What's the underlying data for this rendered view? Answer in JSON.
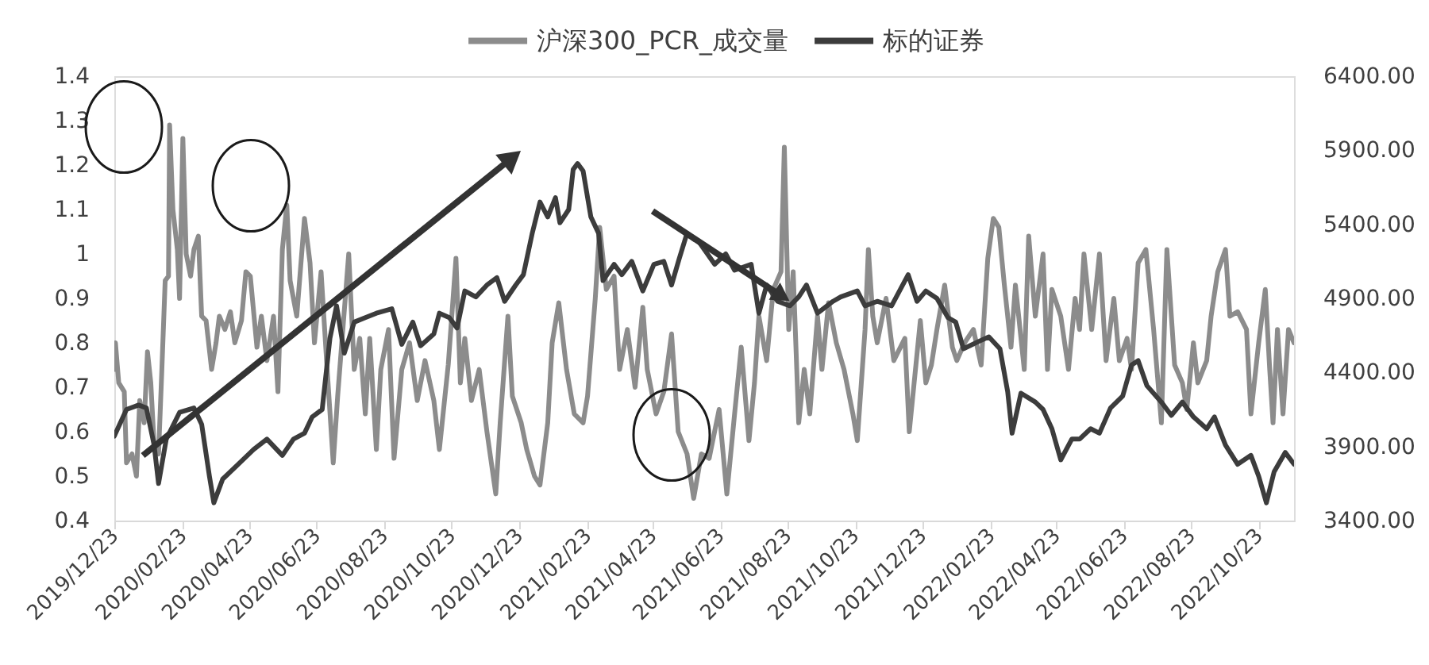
{
  "chart_data": {
    "type": "line",
    "legend": "top",
    "grid": false,
    "xlim": [
      "2019-12-23",
      "2022-11-24"
    ],
    "xticks": [
      {
        "value": "2019-12-23",
        "label": "2019/12/23"
      },
      {
        "value": "2020-02-23",
        "label": "2020/02/23"
      },
      {
        "value": "2020-04-23",
        "label": "2020/04/23"
      },
      {
        "value": "2020-06-23",
        "label": "2020/06/23"
      },
      {
        "value": "2020-08-23",
        "label": "2020/08/23"
      },
      {
        "value": "2020-10-23",
        "label": "2020/10/23"
      },
      {
        "value": "2020-12-23",
        "label": "2020/12/23"
      },
      {
        "value": "2021-02-23",
        "label": "2021/02/23"
      },
      {
        "value": "2021-04-23",
        "label": "2021/04/23"
      },
      {
        "value": "2021-06-23",
        "label": "2021/06/23"
      },
      {
        "value": "2021-08-23",
        "label": "2021/08/23"
      },
      {
        "value": "2021-10-23",
        "label": "2021/10/23"
      },
      {
        "value": "2021-12-23",
        "label": "2021/12/23"
      },
      {
        "value": "2022-02-23",
        "label": "2022/02/23"
      },
      {
        "value": "2022-04-23",
        "label": "2022/04/23"
      },
      {
        "value": "2022-06-23",
        "label": "2022/06/23"
      },
      {
        "value": "2022-08-23",
        "label": "2022/08/23"
      },
      {
        "value": "2022-10-23",
        "label": "2022/10/23"
      }
    ],
    "ylim": [
      0.4,
      1.4
    ],
    "yticks": [
      0.4,
      0.5,
      0.6,
      0.7,
      0.8,
      0.9,
      1,
      1.1,
      1.2,
      1.3,
      1.4
    ],
    "y2lim": [
      3400,
      6400
    ],
    "y2ticks": [
      {
        "value": 3400,
        "label": "3400.00"
      },
      {
        "value": 3900,
        "label": "3900.00"
      },
      {
        "value": 4400,
        "label": "4400.00"
      },
      {
        "value": 4900,
        "label": "4900.00"
      },
      {
        "value": 5400,
        "label": "5400.00"
      },
      {
        "value": 5900,
        "label": "5900.00"
      },
      {
        "value": 6400,
        "label": "6400.00"
      }
    ],
    "series": [
      {
        "name": "沪深300_PCR_成交量",
        "color": "#8c8c8c",
        "x": [
          "2019-12-23",
          "2019-12-24",
          "2019-12-27",
          "2020-01-01",
          "2020-01-03",
          "2020-01-08",
          "2020-01-12",
          "2020-01-15",
          "2020-01-19",
          "2020-01-22",
          "2020-01-25",
          "2020-01-28",
          "2020-02-01",
          "2020-02-04",
          "2020-02-07",
          "2020-02-10",
          "2020-02-11",
          "2020-02-14",
          "2020-02-18",
          "2020-02-20",
          "2020-02-23",
          "2020-02-26",
          "2020-03-01",
          "2020-03-04",
          "2020-03-08",
          "2020-03-11",
          "2020-03-15",
          "2020-03-20",
          "2020-03-24",
          "2020-03-27",
          "2020-04-01",
          "2020-04-06",
          "2020-04-10",
          "2020-04-16",
          "2020-04-20",
          "2020-04-24",
          "2020-04-30",
          "2020-05-04",
          "2020-05-09",
          "2020-05-15",
          "2020-05-19",
          "2020-05-23",
          "2020-05-27",
          "2020-05-30",
          "2020-06-05",
          "2020-06-12",
          "2020-06-17",
          "2020-06-21",
          "2020-06-27",
          "2020-07-02",
          "2020-07-08",
          "2020-07-12",
          "2020-07-22",
          "2020-07-27",
          "2020-08-01",
          "2020-08-06",
          "2020-08-10",
          "2020-08-16",
          "2020-08-20",
          "2020-08-27",
          "2020-09-01",
          "2020-09-08",
          "2020-09-15",
          "2020-09-22",
          "2020-09-29",
          "2020-10-07",
          "2020-10-12",
          "2020-10-20",
          "2020-10-27",
          "2020-10-31",
          "2020-11-04",
          "2020-11-10",
          "2020-11-17",
          "2020-11-24",
          "2020-12-02",
          "2020-12-06",
          "2020-12-13",
          "2020-12-17",
          "2020-12-25",
          "2020-12-30",
          "2021-01-06",
          "2021-01-11",
          "2021-01-18",
          "2021-01-22",
          "2021-01-28",
          "2021-02-04",
          "2021-02-11",
          "2021-02-19",
          "2021-02-23",
          "2021-03-02",
          "2021-03-06",
          "2021-03-12",
          "2021-03-19",
          "2021-03-24",
          "2021-03-31",
          "2021-04-07",
          "2021-04-14",
          "2021-04-18",
          "2021-04-26",
          "2021-05-03",
          "2021-05-10",
          "2021-05-16",
          "2021-05-24",
          "2021-05-30",
          "2021-06-06",
          "2021-06-13",
          "2021-06-22",
          "2021-06-29",
          "2021-07-06",
          "2021-07-12",
          "2021-07-19",
          "2021-07-24",
          "2021-07-28",
          "2021-08-04",
          "2021-08-10",
          "2021-08-17",
          "2021-08-20",
          "2021-08-24",
          "2021-08-28",
          "2021-09-02",
          "2021-09-07",
          "2021-09-12",
          "2021-09-19",
          "2021-09-23",
          "2021-09-29",
          "2021-10-06",
          "2021-10-13",
          "2021-10-21",
          "2021-10-25",
          "2021-11-01",
          "2021-11-04",
          "2021-11-08",
          "2021-11-12",
          "2021-11-20",
          "2021-11-27",
          "2021-12-07",
          "2021-12-11",
          "2021-12-17",
          "2021-12-21",
          "2021-12-26",
          "2021-12-31",
          "2022-01-05",
          "2022-01-12",
          "2022-01-19",
          "2022-01-23",
          "2022-01-30",
          "2022-02-07",
          "2022-02-14",
          "2022-02-20",
          "2022-02-25",
          "2022-03-02",
          "2022-03-07",
          "2022-03-13",
          "2022-03-17",
          "2022-03-25",
          "2022-03-29",
          "2022-04-04",
          "2022-04-11",
          "2022-04-15",
          "2022-04-19",
          "2022-04-27",
          "2022-05-04",
          "2022-05-10",
          "2022-05-14",
          "2022-05-18",
          "2022-05-25",
          "2022-06-01",
          "2022-06-07",
          "2022-06-14",
          "2022-06-19",
          "2022-06-26",
          "2022-06-30",
          "2022-07-06",
          "2022-07-13",
          "2022-07-20",
          "2022-07-27",
          "2022-08-01",
          "2022-08-08",
          "2022-08-15",
          "2022-08-19",
          "2022-08-25",
          "2022-08-29",
          "2022-09-06",
          "2022-09-10",
          "2022-09-16",
          "2022-09-23",
          "2022-09-27",
          "2022-10-04",
          "2022-10-12",
          "2022-10-16",
          "2022-10-23",
          "2022-10-29",
          "2022-11-02",
          "2022-11-05",
          "2022-11-09",
          "2022-11-14",
          "2022-11-19",
          "2022-11-24"
        ],
        "values": [
          0.74,
          0.8,
          0.71,
          0.69,
          0.53,
          0.55,
          0.5,
          0.67,
          0.62,
          0.78,
          0.71,
          0.57,
          0.55,
          0.74,
          0.94,
          0.95,
          1.29,
          1.1,
          1.01,
          0.9,
          1.26,
          1.0,
          0.95,
          1.01,
          1.04,
          0.86,
          0.85,
          0.74,
          0.8,
          0.86,
          0.83,
          0.87,
          0.8,
          0.85,
          0.96,
          0.95,
          0.79,
          0.86,
          0.76,
          0.86,
          0.69,
          1.01,
          1.11,
          0.94,
          0.86,
          1.08,
          0.98,
          0.8,
          0.96,
          0.76,
          0.53,
          0.68,
          1.0,
          0.74,
          0.81,
          0.64,
          0.81,
          0.56,
          0.74,
          0.83,
          0.54,
          0.74,
          0.8,
          0.67,
          0.76,
          0.67,
          0.56,
          0.75,
          0.99,
          0.71,
          0.81,
          0.67,
          0.74,
          0.6,
          0.46,
          0.62,
          0.86,
          0.68,
          0.62,
          0.56,
          0.5,
          0.48,
          0.62,
          0.8,
          0.89,
          0.74,
          0.64,
          0.62,
          0.68,
          0.9,
          1.06,
          0.92,
          0.95,
          0.74,
          0.83,
          0.7,
          0.88,
          0.74,
          0.64,
          0.69,
          0.82,
          0.6,
          0.55,
          0.45,
          0.55,
          0.54,
          0.65,
          0.46,
          0.64,
          0.79,
          0.58,
          0.71,
          0.86,
          0.76,
          0.92,
          0.96,
          1.24,
          0.83,
          0.96,
          0.62,
          0.74,
          0.64,
          0.86,
          0.74,
          0.89,
          0.8,
          0.74,
          0.64,
          0.58,
          0.83,
          1.01,
          0.86,
          0.8,
          0.9,
          0.76,
          0.81,
          0.6,
          0.75,
          0.85,
          0.71,
          0.75,
          0.83,
          0.93,
          0.79,
          0.76,
          0.8,
          0.83,
          0.75,
          0.99,
          1.08,
          1.06,
          0.93,
          0.79,
          0.93,
          0.74,
          1.04,
          0.86,
          1.0,
          0.74,
          0.92,
          0.86,
          0.74,
          0.9,
          0.83,
          1.0,
          0.83,
          1.0,
          0.76,
          0.9,
          0.76,
          0.81,
          0.74,
          0.98,
          1.01,
          0.83,
          0.62,
          1.01,
          0.75,
          0.71,
          0.65,
          0.8,
          0.71,
          0.76,
          0.86,
          0.96,
          1.01,
          0.86,
          0.87,
          0.83,
          0.64,
          0.8,
          0.92,
          0.74,
          0.62,
          0.83,
          0.64,
          0.83,
          0.8
        ]
      },
      {
        "name": "标的证券",
        "color": "#3c3c3c",
        "axis": "y2",
        "x": [
          "2019-12-23",
          "2020-01-03",
          "2020-01-14",
          "2020-01-21",
          "2020-01-28",
          "2020-02-01",
          "2020-02-08",
          "2020-02-20",
          "2020-03-04",
          "2020-03-11",
          "2020-03-18",
          "2020-03-22",
          "2020-03-30",
          "2020-04-13",
          "2020-04-27",
          "2020-05-09",
          "2020-05-23",
          "2020-06-02",
          "2020-06-12",
          "2020-06-19",
          "2020-06-28",
          "2020-07-05",
          "2020-07-11",
          "2020-07-18",
          "2020-07-27",
          "2020-08-06",
          "2020-08-16",
          "2020-08-30",
          "2020-09-08",
          "2020-09-18",
          "2020-09-25",
          "2020-10-07",
          "2020-10-12",
          "2020-10-21",
          "2020-10-28",
          "2020-11-04",
          "2020-11-14",
          "2020-11-24",
          "2020-12-03",
          "2020-12-10",
          "2020-12-20",
          "2020-12-27",
          "2021-01-04",
          "2021-01-11",
          "2021-01-18",
          "2021-01-25",
          "2021-01-29",
          "2021-02-06",
          "2021-02-10",
          "2021-02-14",
          "2021-02-19",
          "2021-02-26",
          "2021-03-05",
          "2021-03-09",
          "2021-03-19",
          "2021-03-26",
          "2021-04-04",
          "2021-04-14",
          "2021-04-24",
          "2021-05-03",
          "2021-05-10",
          "2021-05-17",
          "2021-05-24",
          "2021-05-30",
          "2021-06-03",
          "2021-06-18",
          "2021-06-28",
          "2021-07-06",
          "2021-07-21",
          "2021-07-28",
          "2021-08-04",
          "2021-08-14",
          "2021-08-25",
          "2021-09-02",
          "2021-09-09",
          "2021-09-19",
          "2021-10-03",
          "2021-10-10",
          "2021-10-25",
          "2021-11-01",
          "2021-11-12",
          "2021-11-25",
          "2021-12-10",
          "2021-12-18",
          "2021-12-26",
          "2022-01-05",
          "2022-01-15",
          "2022-01-22",
          "2022-01-29",
          "2022-02-12",
          "2022-02-21",
          "2022-03-03",
          "2022-03-10",
          "2022-03-14",
          "2022-03-22",
          "2022-04-04",
          "2022-04-11",
          "2022-04-19",
          "2022-04-27",
          "2022-05-07",
          "2022-05-14",
          "2022-05-24",
          "2022-06-01",
          "2022-06-11",
          "2022-06-22",
          "2022-06-30",
          "2022-07-06",
          "2022-07-14",
          "2022-07-27",
          "2022-08-05",
          "2022-08-15",
          "2022-08-25",
          "2022-09-06",
          "2022-09-13",
          "2022-09-23",
          "2022-10-04",
          "2022-10-16",
          "2022-10-23",
          "2022-10-30",
          "2022-11-06",
          "2022-11-16",
          "2022-11-24"
        ],
        "values": [
          3970,
          4150,
          4180,
          4160,
          3910,
          3650,
          3950,
          4130,
          4160,
          4050,
          3700,
          3520,
          3680,
          3780,
          3880,
          3950,
          3840,
          3950,
          3990,
          4100,
          4150,
          4630,
          4850,
          4530,
          4740,
          4770,
          4800,
          4830,
          4590,
          4740,
          4580,
          4660,
          4800,
          4770,
          4700,
          4950,
          4910,
          4990,
          5040,
          4880,
          4990,
          5060,
          5340,
          5550,
          5450,
          5580,
          5410,
          5500,
          5770,
          5810,
          5760,
          5450,
          5340,
          5020,
          5130,
          5060,
          5150,
          4950,
          5130,
          5150,
          4990,
          5170,
          5340,
          5300,
          5290,
          5130,
          5200,
          5090,
          5130,
          4800,
          4990,
          4880,
          4850,
          4910,
          4990,
          4800,
          4880,
          4910,
          4950,
          4850,
          4880,
          4850,
          5060,
          4880,
          4950,
          4900,
          4770,
          4740,
          4560,
          4610,
          4640,
          4560,
          4270,
          3990,
          4260,
          4200,
          4150,
          4020,
          3810,
          3950,
          3950,
          4020,
          3990,
          4160,
          4240,
          4450,
          4480,
          4310,
          4200,
          4110,
          4200,
          4100,
          4020,
          4100,
          3910,
          3780,
          3840,
          3700,
          3520,
          3730,
          3860,
          3780
        ]
      }
    ]
  }
}
